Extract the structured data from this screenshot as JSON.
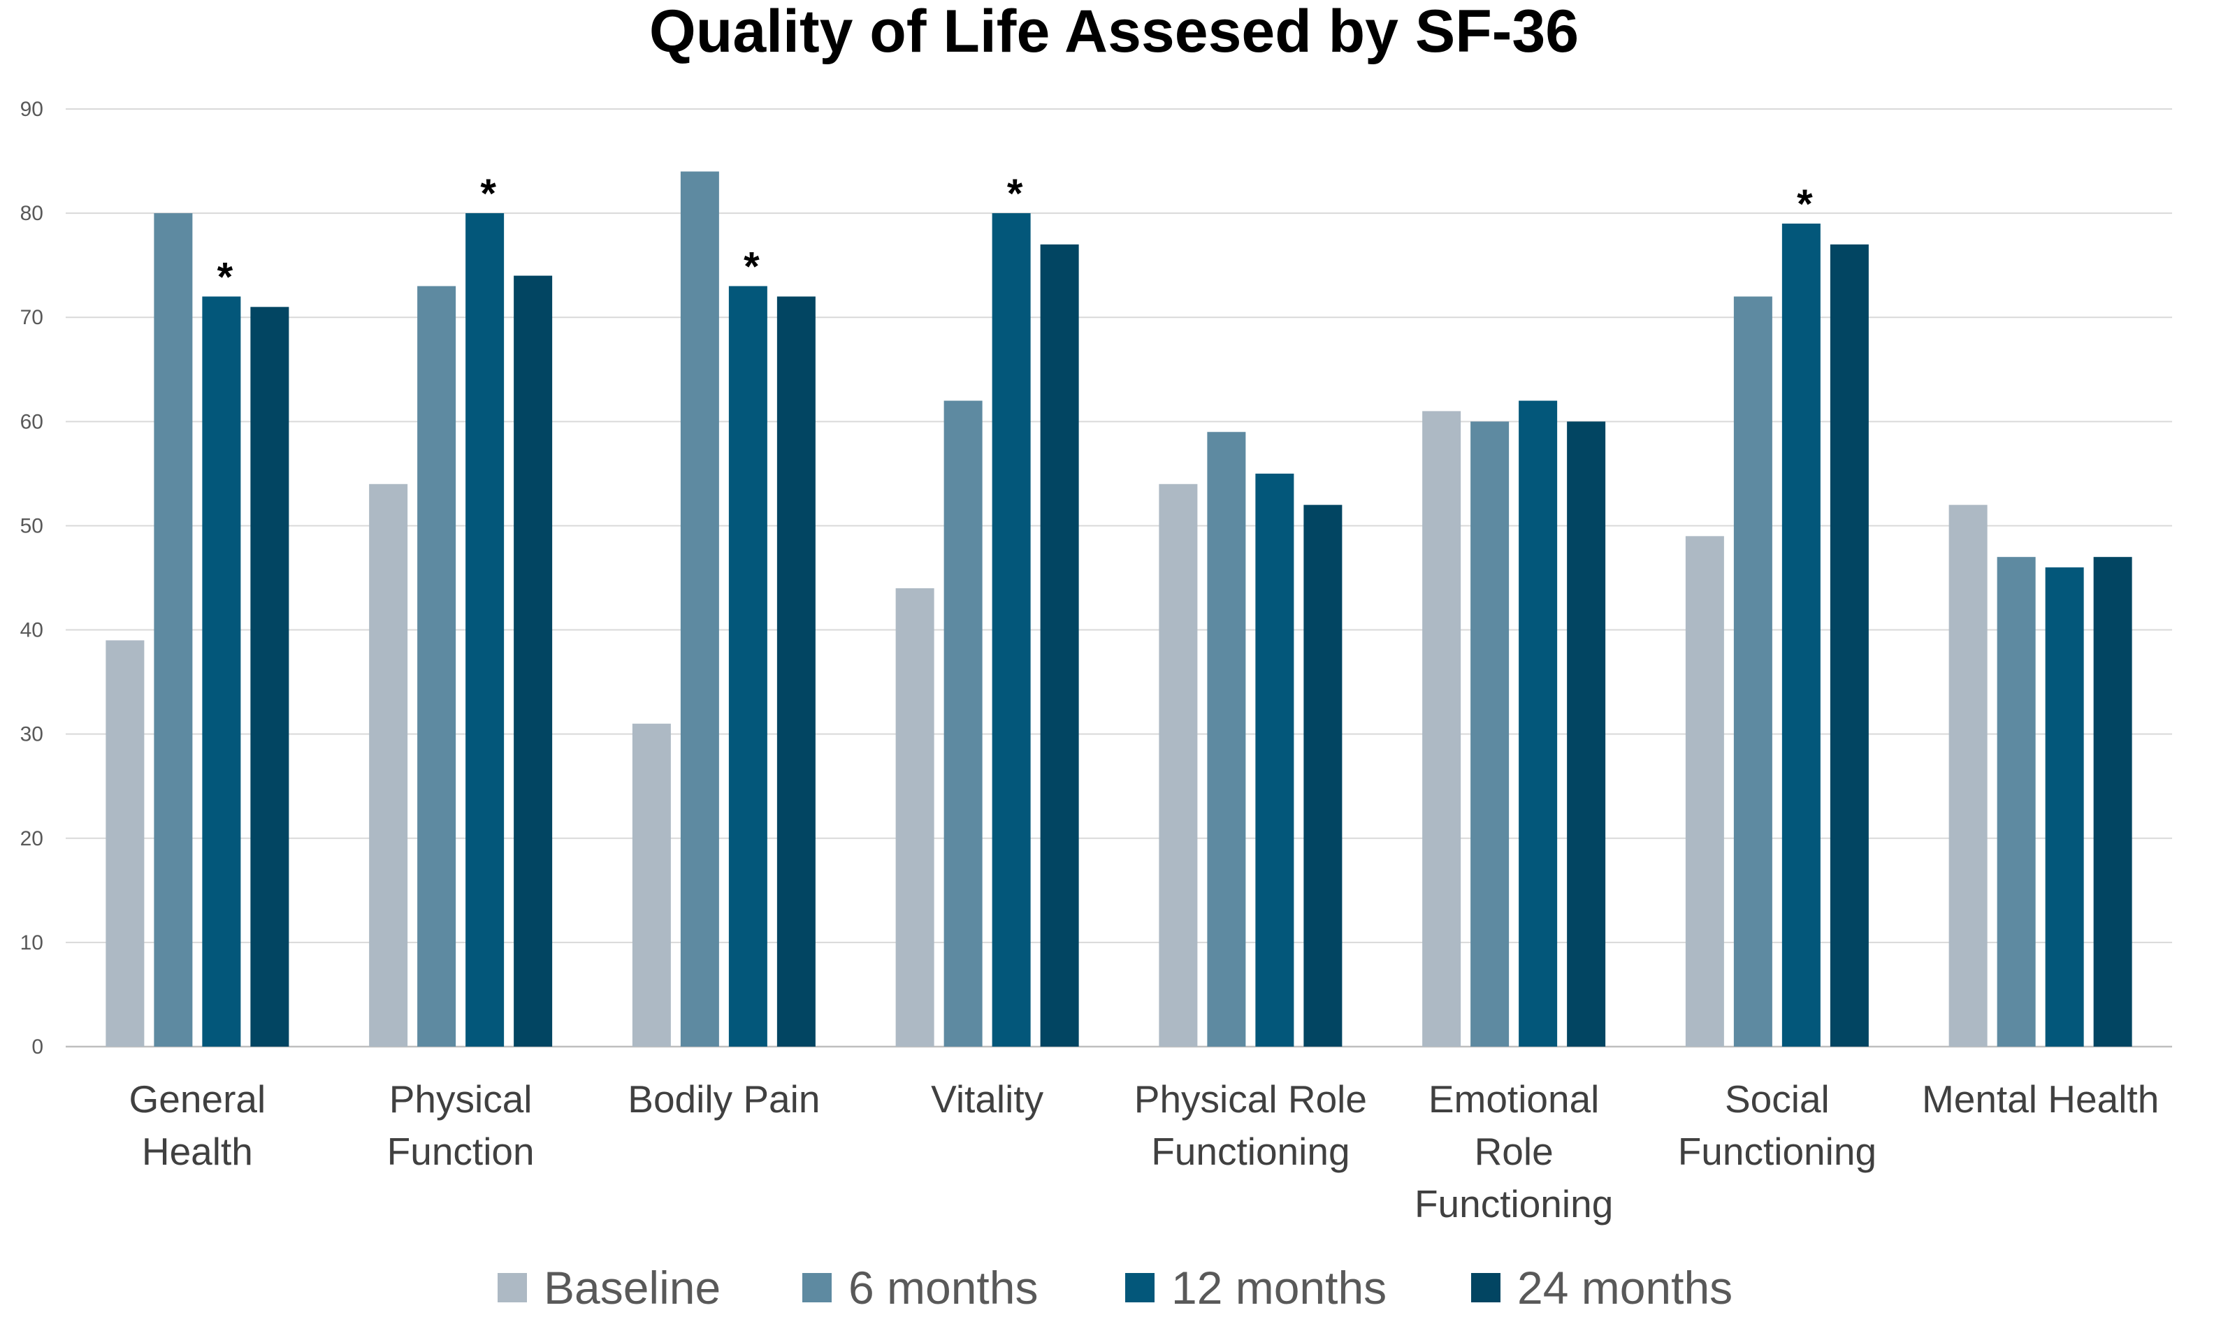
{
  "chart_data": {
    "type": "bar",
    "title": "Quality of Life Assesed by SF-36",
    "xlabel": "",
    "ylabel": "",
    "ylim": [
      0,
      90
    ],
    "yticks": [
      0,
      10,
      20,
      30,
      40,
      50,
      60,
      70,
      80,
      90
    ],
    "grid": true,
    "legend_position": "bottom",
    "categories": [
      [
        "General",
        "Health"
      ],
      [
        "Physical",
        "Function"
      ],
      [
        "Bodily Pain"
      ],
      [
        "Vitality"
      ],
      [
        "Physical Role",
        "Functioning"
      ],
      [
        "Emotional",
        "Role",
        "Functioning"
      ],
      [
        "Social",
        "Functioning"
      ],
      [
        "Mental Health"
      ]
    ],
    "series": [
      {
        "name": "Baseline",
        "color": "#adb9c4",
        "values": [
          39,
          54,
          31,
          44,
          54,
          61,
          49,
          52
        ]
      },
      {
        "name": "6 months",
        "color": "#5e8aa1",
        "values": [
          80,
          73,
          84,
          62,
          59,
          60,
          72,
          47
        ]
      },
      {
        "name": "12 months",
        "color": "#03577a",
        "values": [
          72,
          80,
          73,
          80,
          55,
          62,
          79,
          46
        ]
      },
      {
        "name": "24 months",
        "color": "#024562",
        "values": [
          71,
          74,
          72,
          77,
          52,
          60,
          77,
          47
        ]
      }
    ],
    "significance_marker": "*",
    "significance_markers": [
      {
        "category_index": 0,
        "series_index": 2
      },
      {
        "category_index": 1,
        "series_index": 2
      },
      {
        "category_index": 2,
        "series_index": 2
      },
      {
        "category_index": 3,
        "series_index": 2
      },
      {
        "category_index": 6,
        "series_index": 2
      }
    ]
  }
}
